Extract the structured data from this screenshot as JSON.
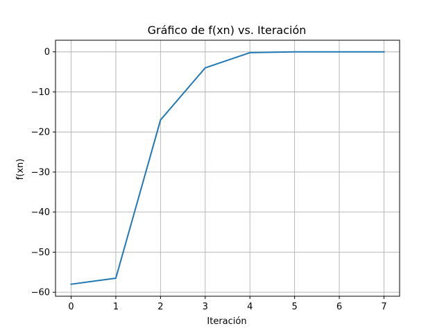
{
  "chart_data": {
    "type": "line",
    "title": "Gráfico de f(xn) vs. Iteración",
    "xlabel": "Iteración",
    "ylabel": "f(xn)",
    "x": [
      0,
      1,
      2,
      3,
      4,
      5,
      6,
      7
    ],
    "series": [
      {
        "values": [
          -58,
          -56.5,
          -17,
          -4,
          -0.2,
          0,
          0,
          0
        ],
        "color": "#1f77b4"
      }
    ],
    "xlim": [
      -0.35,
      7.35
    ],
    "ylim": [
      -61,
      2.9
    ],
    "xticks": [
      0,
      1,
      2,
      3,
      4,
      5,
      6,
      7
    ],
    "yticks": [
      0,
      -10,
      -20,
      -30,
      -40,
      -50,
      -60
    ],
    "xtick_labels": [
      "0",
      "1",
      "2",
      "3",
      "4",
      "5",
      "6",
      "7"
    ],
    "ytick_labels": [
      "0",
      "−10",
      "−20",
      "−30",
      "−40",
      "−50",
      "−60"
    ],
    "grid": true,
    "grid_color": "#b0b0b0",
    "spine_color": "#000000"
  }
}
